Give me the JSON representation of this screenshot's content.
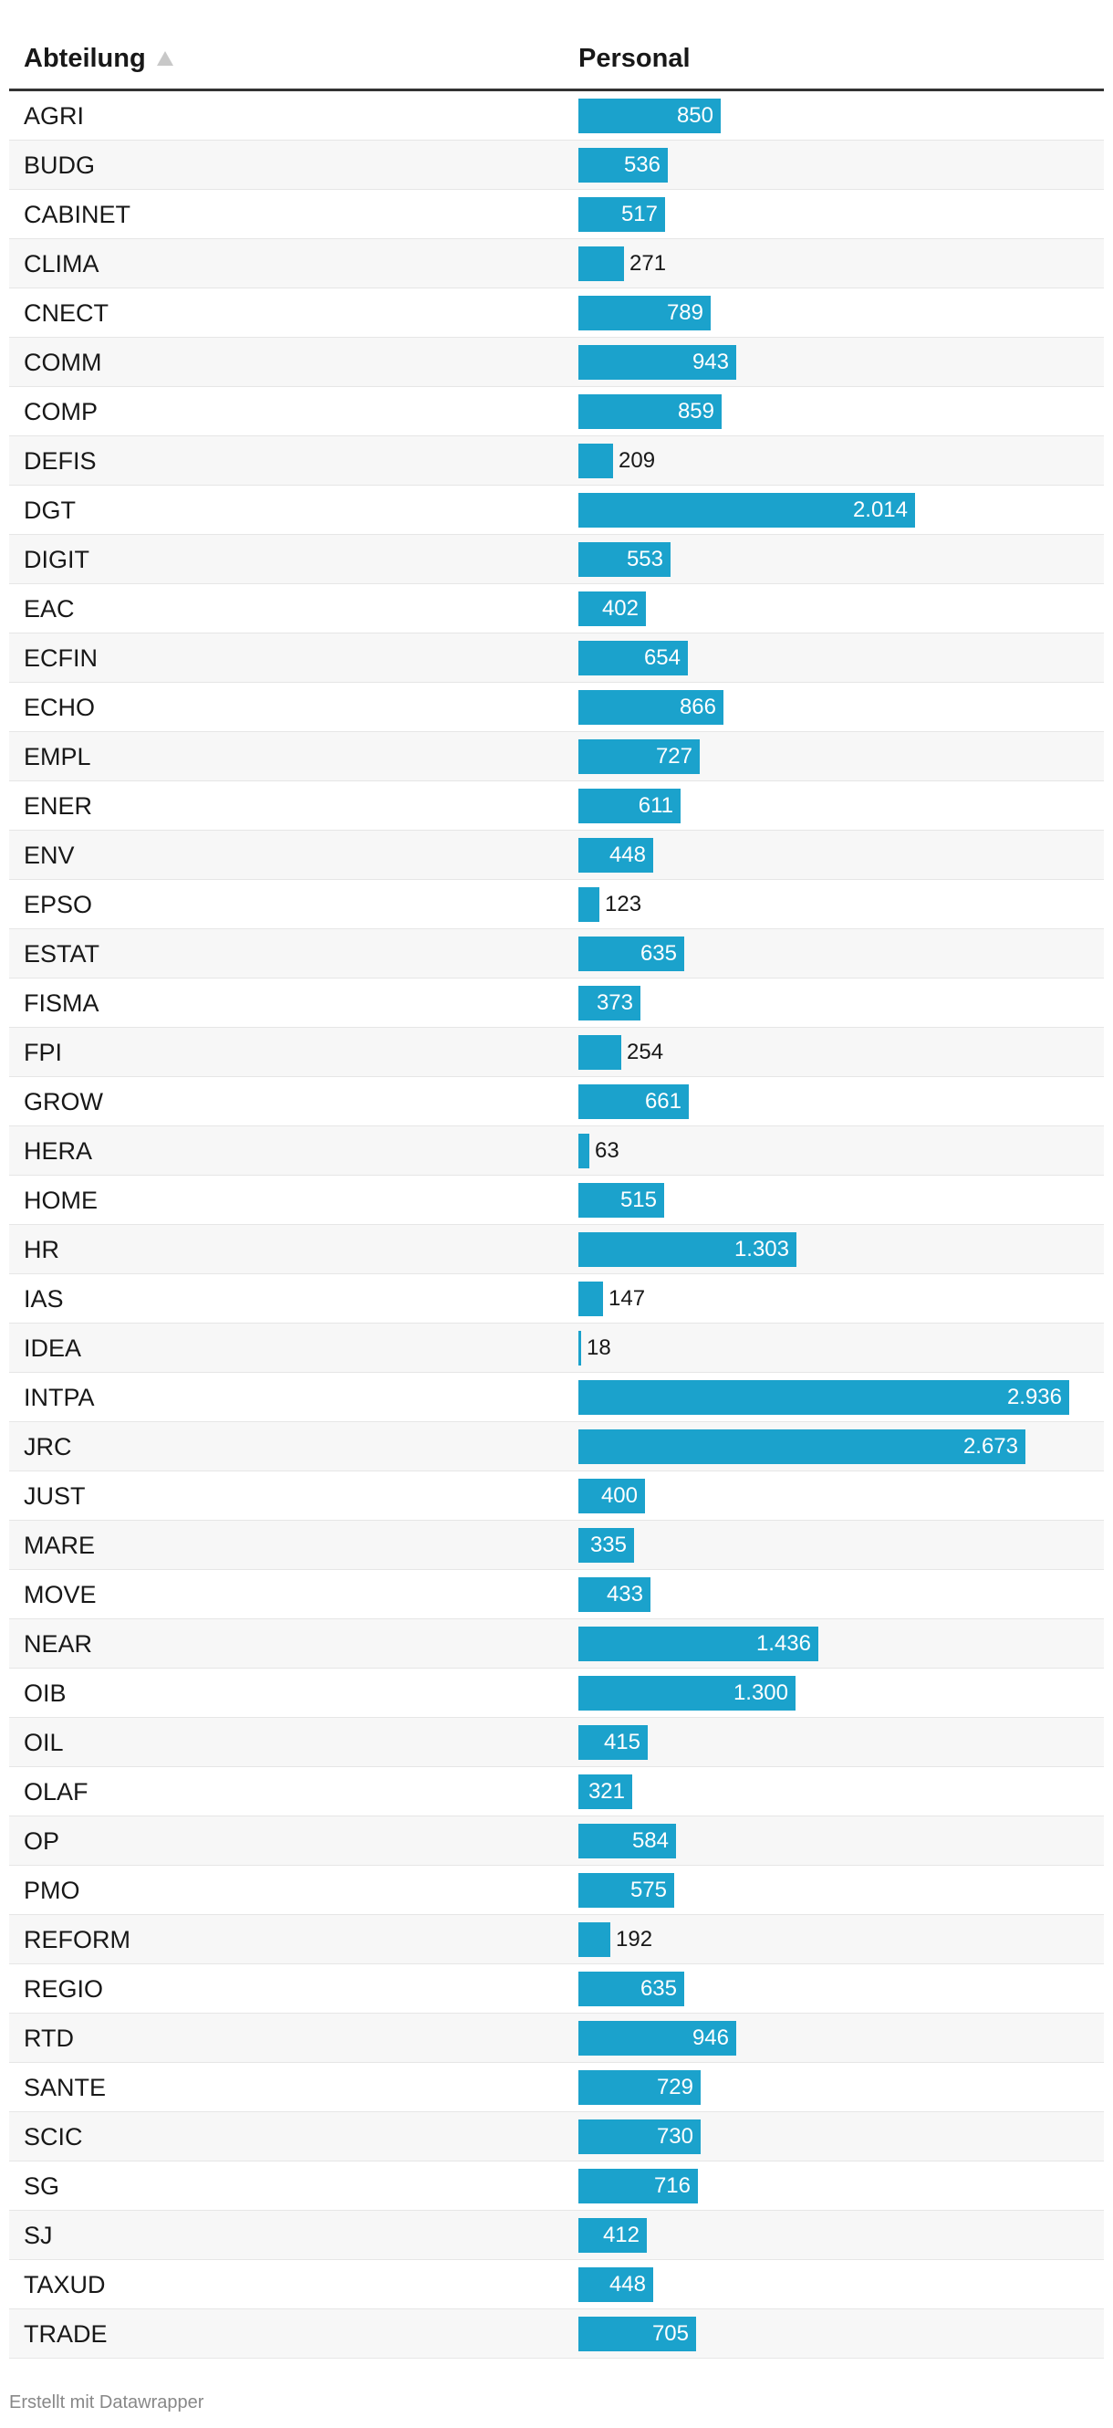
{
  "table": {
    "header": {
      "department": "Abteilung",
      "personal": "Personal"
    }
  },
  "footer": {
    "credit": "Erstellt mit Datawrapper"
  },
  "colors": {
    "bar": "#1ba2cc",
    "row_stripe": "#f7f7f7",
    "header_rule": "#333333"
  },
  "sort": {
    "column": "Abteilung",
    "direction": "ascending",
    "icon": "sort-ascending-icon"
  },
  "chart_data": {
    "type": "table",
    "columns": [
      "Abteilung",
      "Personal"
    ],
    "bar_column": "Personal",
    "bar_max": 2936,
    "rows": [
      {
        "dept": "AGRI",
        "value": 850,
        "label": "850"
      },
      {
        "dept": "BUDG",
        "value": 536,
        "label": "536"
      },
      {
        "dept": "CABINET",
        "value": 517,
        "label": "517"
      },
      {
        "dept": "CLIMA",
        "value": 271,
        "label": "271"
      },
      {
        "dept": "CNECT",
        "value": 789,
        "label": "789"
      },
      {
        "dept": "COMM",
        "value": 943,
        "label": "943"
      },
      {
        "dept": "COMP",
        "value": 859,
        "label": "859"
      },
      {
        "dept": "DEFIS",
        "value": 209,
        "label": "209"
      },
      {
        "dept": "DGT",
        "value": 2014,
        "label": "2.014"
      },
      {
        "dept": "DIGIT",
        "value": 553,
        "label": "553"
      },
      {
        "dept": "EAC",
        "value": 402,
        "label": "402"
      },
      {
        "dept": "ECFIN",
        "value": 654,
        "label": "654"
      },
      {
        "dept": "ECHO",
        "value": 866,
        "label": "866"
      },
      {
        "dept": "EMPL",
        "value": 727,
        "label": "727"
      },
      {
        "dept": "ENER",
        "value": 611,
        "label": "611"
      },
      {
        "dept": "ENV",
        "value": 448,
        "label": "448"
      },
      {
        "dept": "EPSO",
        "value": 123,
        "label": "123"
      },
      {
        "dept": "ESTAT",
        "value": 635,
        "label": "635"
      },
      {
        "dept": "FISMA",
        "value": 373,
        "label": "373"
      },
      {
        "dept": "FPI",
        "value": 254,
        "label": "254"
      },
      {
        "dept": "GROW",
        "value": 661,
        "label": "661"
      },
      {
        "dept": "HERA",
        "value": 63,
        "label": "63"
      },
      {
        "dept": "HOME",
        "value": 515,
        "label": "515"
      },
      {
        "dept": "HR",
        "value": 1303,
        "label": "1.303"
      },
      {
        "dept": "IAS",
        "value": 147,
        "label": "147"
      },
      {
        "dept": "IDEA",
        "value": 18,
        "label": "18"
      },
      {
        "dept": "INTPA",
        "value": 2936,
        "label": "2.936"
      },
      {
        "dept": "JRC",
        "value": 2673,
        "label": "2.673"
      },
      {
        "dept": "JUST",
        "value": 400,
        "label": "400"
      },
      {
        "dept": "MARE",
        "value": 335,
        "label": "335"
      },
      {
        "dept": "MOVE",
        "value": 433,
        "label": "433"
      },
      {
        "dept": "NEAR",
        "value": 1436,
        "label": "1.436"
      },
      {
        "dept": "OIB",
        "value": 1300,
        "label": "1.300"
      },
      {
        "dept": "OIL",
        "value": 415,
        "label": "415"
      },
      {
        "dept": "OLAF",
        "value": 321,
        "label": "321"
      },
      {
        "dept": "OP",
        "value": 584,
        "label": "584"
      },
      {
        "dept": "PMO",
        "value": 575,
        "label": "575"
      },
      {
        "dept": "REFORM",
        "value": 192,
        "label": "192"
      },
      {
        "dept": "REGIO",
        "value": 635,
        "label": "635"
      },
      {
        "dept": "RTD",
        "value": 946,
        "label": "946"
      },
      {
        "dept": "SANTE",
        "value": 729,
        "label": "729"
      },
      {
        "dept": "SCIC",
        "value": 730,
        "label": "730"
      },
      {
        "dept": "SG",
        "value": 716,
        "label": "716"
      },
      {
        "dept": "SJ",
        "value": 412,
        "label": "412"
      },
      {
        "dept": "TAXUD",
        "value": 448,
        "label": "448"
      },
      {
        "dept": "TRADE",
        "value": 705,
        "label": "705"
      }
    ]
  }
}
